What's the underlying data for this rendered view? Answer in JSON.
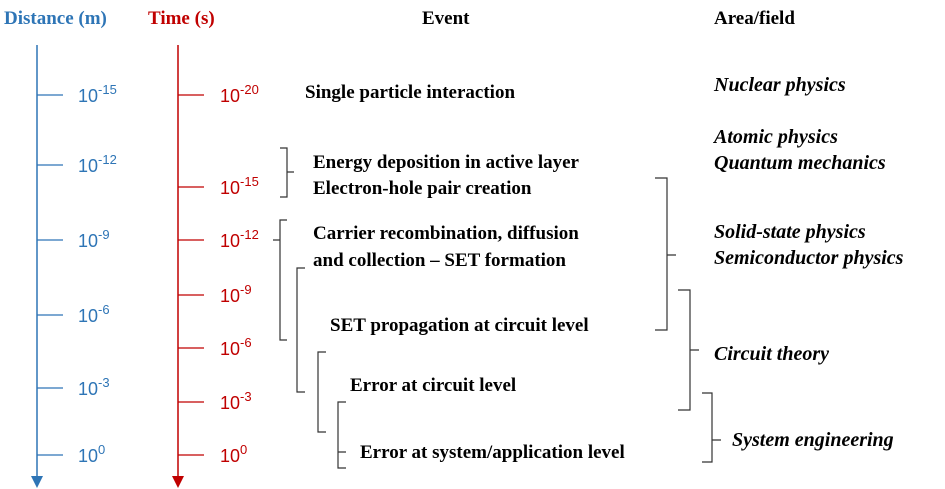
{
  "headers": {
    "distance": "Distance (m)",
    "time": "Time (s)",
    "event": "Event",
    "area": "Area/field"
  },
  "distance_ticks": [
    {
      "base": "10",
      "exp": "-15"
    },
    {
      "base": "10",
      "exp": "-12"
    },
    {
      "base": "10",
      "exp": "-9"
    },
    {
      "base": "10",
      "exp": "-6"
    },
    {
      "base": "10",
      "exp": "-3"
    },
    {
      "base": "10",
      "exp": "0"
    }
  ],
  "time_ticks": [
    {
      "base": "10",
      "exp": "-20"
    },
    {
      "base": "10",
      "exp": "-15"
    },
    {
      "base": "10",
      "exp": "-12"
    },
    {
      "base": "10",
      "exp": "-9"
    },
    {
      "base": "10",
      "exp": "-6"
    },
    {
      "base": "10",
      "exp": "-3"
    },
    {
      "base": "10",
      "exp": "0"
    }
  ],
  "events": [
    "Single particle interaction",
    "Energy deposition in active layer",
    "Electron-hole pair creation",
    "Carrier recombination, diffusion",
    "and collection – SET formation",
    "SET propagation at circuit level",
    "Error at circuit level",
    "Error at system/application level"
  ],
  "areas": [
    "Nuclear physics",
    "Atomic physics",
    "Quantum mechanics",
    "Solid-state physics",
    "Semiconductor physics",
    "Circuit theory",
    "System engineering"
  ]
}
